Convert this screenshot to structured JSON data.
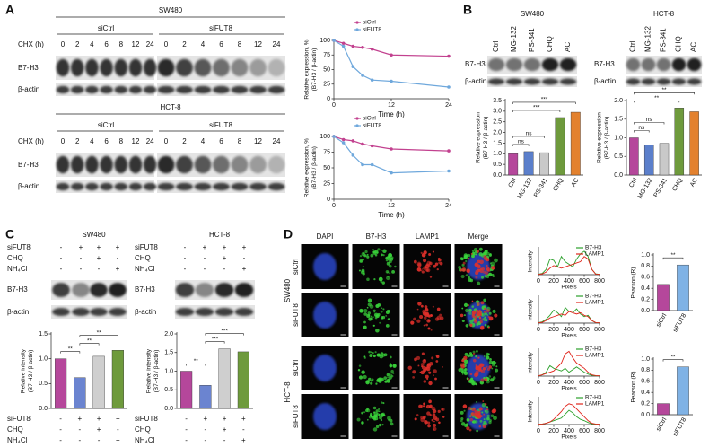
{
  "panel_labels": [
    "A",
    "B",
    "C",
    "D"
  ],
  "panel_a": {
    "groups": [
      {
        "title": "SW480",
        "conditions": [
          "siCtrl",
          "siFUT8"
        ],
        "time_label": "CHX (h)",
        "times": [
          "0",
          "2",
          "4",
          "6",
          "8",
          "12",
          "24"
        ],
        "rows": [
          "B7-H3",
          "β-actin"
        ]
      },
      {
        "title": "HCT-8",
        "conditions": [
          "siCtrl",
          "siFUT8"
        ],
        "time_label": "CHX (h)",
        "times": [
          "0",
          "2",
          "4",
          "6",
          "8",
          "12",
          "24"
        ],
        "rows": [
          "B7-H3",
          "β-actin"
        ]
      }
    ]
  },
  "panel_b": {
    "blots": [
      {
        "title": "SW480",
        "lanes": [
          "Ctrl",
          "MG-132",
          "PS-341",
          "CHQ",
          "AC"
        ],
        "rows": [
          "B7-H3",
          "β-actin"
        ]
      },
      {
        "title": "HCT-8",
        "lanes": [
          "Ctrl",
          "MG-132",
          "PS-341",
          "CHQ",
          "AC"
        ],
        "rows": [
          "B7-H3",
          "β-actin"
        ]
      }
    ]
  },
  "panel_c": {
    "blots": [
      {
        "title": "SW480",
        "treatments": [
          {
            "name": "siFUT8",
            "signs": [
              "-",
              "+",
              "+",
              "+"
            ]
          },
          {
            "name": "CHQ",
            "signs": [
              "-",
              "-",
              "+",
              "-"
            ]
          },
          {
            "name": "NH₄Cl",
            "signs": [
              "-",
              "-",
              "-",
              "+"
            ]
          }
        ],
        "rows": [
          "B7-H3",
          "β-actin"
        ]
      },
      {
        "title": "HCT-8",
        "treatments": [
          {
            "name": "siFUT8",
            "signs": [
              "-",
              "+",
              "+",
              "+"
            ]
          },
          {
            "name": "CHQ",
            "signs": [
              "-",
              "-",
              "+",
              "-"
            ]
          },
          {
            "name": "NH₄Cl",
            "signs": [
              "-",
              "-",
              "-",
              "+"
            ]
          }
        ],
        "rows": [
          "B7-H3",
          "β-actin"
        ]
      }
    ]
  },
  "panel_d": {
    "columns": [
      "DAPI",
      "B7-H3",
      "LAMP1",
      "Merge"
    ],
    "groups": [
      {
        "name": "SW480",
        "rows": [
          "siCtrl",
          "siFUT8"
        ]
      },
      {
        "name": "HCT-8",
        "rows": [
          "siCtrl",
          "siFUT8"
        ]
      }
    ]
  },
  "chart_data": [
    {
      "type": "line",
      "ylabel": [
        "Relative expression, %",
        "(B7-H3 / β-actin)"
      ],
      "xlabel": "Time (h)",
      "x": [
        0,
        2,
        4,
        6,
        8,
        12,
        24
      ],
      "xlim": [
        0,
        24
      ],
      "xticks": [
        0,
        12,
        24
      ],
      "ylim": [
        0,
        100
      ],
      "yticks": [
        0,
        25,
        50,
        75,
        100
      ],
      "legend": "top-left",
      "markers": true,
      "series": [
        {
          "name": "siCtrl",
          "color": "#c2418f",
          "values": [
            100,
            95,
            90,
            88,
            85,
            75,
            73
          ]
        },
        {
          "name": "siFUT8",
          "color": "#6fa8dc",
          "values": [
            100,
            90,
            55,
            40,
            32,
            30,
            20
          ]
        }
      ]
    },
    {
      "type": "line",
      "ylabel": [
        "Relative expression, %",
        "(B7-H3 / β-actin)"
      ],
      "xlabel": "Time (h)",
      "x": [
        0,
        2,
        4,
        6,
        8,
        12,
        24
      ],
      "xlim": [
        0,
        24
      ],
      "xticks": [
        0,
        12,
        24
      ],
      "ylim": [
        0,
        100
      ],
      "yticks": [
        0,
        25,
        50,
        75,
        100
      ],
      "legend": "top-left",
      "markers": true,
      "series": [
        {
          "name": "siCtrl",
          "color": "#c2418f",
          "values": [
            100,
            95,
            93,
            88,
            85,
            80,
            77
          ]
        },
        {
          "name": "siFUT8",
          "color": "#6fa8dc",
          "values": [
            100,
            90,
            70,
            55,
            55,
            42,
            45
          ]
        }
      ]
    },
    {
      "type": "bar",
      "ylabel": [
        "Relative expression",
        "(B7-H3 / β-actin)"
      ],
      "categories": [
        "Ctrl",
        "MG-132",
        "PS-341",
        "CHQ",
        "AC"
      ],
      "colors": [
        "#b5479b",
        "#5b7fcb",
        "#c9c9c9",
        "#6e9a3c",
        "#e3812e"
      ],
      "values": [
        1.0,
        1.1,
        1.05,
        2.7,
        2.95
      ],
      "ylim": [
        0,
        3.5
      ],
      "yticks": [
        {
          "value": 0,
          "label": "0.0"
        },
        {
          "value": 0.5,
          "label": "0.5"
        },
        {
          "value": 1,
          "label": "1.0"
        },
        {
          "value": 1.5,
          "label": "1.5"
        },
        {
          "value": 2,
          "label": "2.0"
        },
        {
          "value": 2.5,
          "label": "2.5"
        },
        {
          "value": 3,
          "label": "3.0"
        },
        {
          "value": 3.5,
          "label": "3.5"
        }
      ],
      "comparisons": [
        {
          "pair": [
            0,
            1
          ],
          "label": "ns"
        },
        {
          "pair": [
            0,
            2
          ],
          "label": "ns"
        },
        {
          "pair": [
            0,
            3
          ],
          "label": "***"
        },
        {
          "pair": [
            0,
            4
          ],
          "label": "***"
        }
      ]
    },
    {
      "type": "bar",
      "ylabel": [
        "Relative expression",
        "(B7-H3 / β-actin)"
      ],
      "categories": [
        "Ctrl",
        "MG-132",
        "PS-341",
        "CHQ",
        "AC"
      ],
      "colors": [
        "#b5479b",
        "#5b7fcb",
        "#c9c9c9",
        "#6e9a3c",
        "#e3812e"
      ],
      "values": [
        1.0,
        0.8,
        0.85,
        1.8,
        1.7
      ],
      "ylim": [
        0,
        2
      ],
      "yticks": [
        {
          "value": 0,
          "label": "0.0"
        },
        {
          "value": 0.5,
          "label": "0.5"
        },
        {
          "value": 1,
          "label": "1.0"
        },
        {
          "value": 1.5,
          "label": "1.5"
        },
        {
          "value": 2,
          "label": "2.0"
        }
      ],
      "comparisons": [
        {
          "pair": [
            0,
            1
          ],
          "label": "ns"
        },
        {
          "pair": [
            0,
            2
          ],
          "label": "ns"
        },
        {
          "pair": [
            0,
            3
          ],
          "label": "**"
        },
        {
          "pair": [
            0,
            4
          ],
          "label": "**"
        }
      ]
    },
    {
      "type": "bar",
      "ylabel": [
        "Relative intensity",
        "(B7-H3 / β-actin)"
      ],
      "categories": [
        null,
        null,
        null,
        null
      ],
      "colors": [
        "#b5479b",
        "#6b84d0",
        "#cfcfcf",
        "#6e9a3c"
      ],
      "values": [
        1.0,
        0.62,
        1.05,
        1.17
      ],
      "ylim": [
        0,
        1.5
      ],
      "yticks": [
        {
          "value": 0,
          "label": "0.0"
        },
        {
          "value": 0.5,
          "label": "0.5"
        },
        {
          "value": 1,
          "label": "1.0"
        },
        {
          "value": 1.5,
          "label": "1.5"
        }
      ],
      "comparisons": [
        {
          "pair": [
            0,
            1
          ],
          "label": "**"
        },
        {
          "pair": [
            1,
            2
          ],
          "label": "**"
        },
        {
          "pair": [
            1,
            3
          ],
          "label": "**"
        }
      ]
    },
    {
      "type": "bar",
      "ylabel": [
        "Relative intensity",
        "(B7-H3 / β-actin)"
      ],
      "categories": [
        null,
        null,
        null,
        null
      ],
      "colors": [
        "#b5479b",
        "#6b84d0",
        "#cfcfcf",
        "#6e9a3c"
      ],
      "values": [
        1.0,
        0.62,
        1.6,
        1.52
      ],
      "ylim": [
        0,
        2
      ],
      "yticks": [
        {
          "value": 0,
          "label": "0.0"
        },
        {
          "value": 0.5,
          "label": "0.5"
        },
        {
          "value": 1,
          "label": "1.0"
        },
        {
          "value": 1.5,
          "label": "1.5"
        },
        {
          "value": 2,
          "label": "2.0"
        }
      ],
      "comparisons": [
        {
          "pair": [
            0,
            1
          ],
          "label": "**"
        },
        {
          "pair": [
            1,
            2
          ],
          "label": "***"
        },
        {
          "pair": [
            1,
            3
          ],
          "label": "***"
        }
      ]
    },
    {
      "type": "line",
      "ylabel": [
        "Intensity"
      ],
      "xlabel": "Pixels",
      "x": [
        0,
        50,
        100,
        150,
        200,
        250,
        300,
        350,
        400,
        450,
        500,
        550,
        600,
        650,
        700,
        750,
        800
      ],
      "xlim": [
        0,
        800
      ],
      "xticks": [
        0,
        200,
        400,
        600,
        800
      ],
      "ylim": [
        0,
        100
      ],
      "legend": "upper-right",
      "series": [
        {
          "name": "B7-H3",
          "color": "#2ca02c",
          "values": [
            2,
            5,
            20,
            60,
            55,
            30,
            70,
            50,
            40,
            30,
            60,
            80,
            90,
            70,
            20,
            3,
            1
          ]
        },
        {
          "name": "LAMP1",
          "color": "#e0241b",
          "values": [
            1,
            3,
            10,
            25,
            35,
            30,
            25,
            30,
            35,
            40,
            45,
            50,
            70,
            60,
            20,
            2,
            1
          ]
        }
      ]
    },
    {
      "type": "line",
      "ylabel": [
        "Intensity"
      ],
      "xlabel": "Pixels",
      "x": [
        0,
        50,
        100,
        150,
        200,
        250,
        300,
        350,
        400,
        450,
        500,
        550,
        600,
        650,
        700,
        750,
        800
      ],
      "xlim": [
        0,
        800
      ],
      "xticks": [
        0,
        200,
        400,
        600,
        800
      ],
      "ylim": [
        0,
        100
      ],
      "legend": "upper-right",
      "series": [
        {
          "name": "B7-H3",
          "color": "#2ca02c",
          "values": [
            2,
            5,
            15,
            30,
            50,
            40,
            25,
            60,
            45,
            40,
            55,
            35,
            25,
            30,
            10,
            2,
            1
          ]
        },
        {
          "name": "LAMP1",
          "color": "#e0241b",
          "values": [
            1,
            3,
            10,
            20,
            25,
            30,
            35,
            30,
            45,
            40,
            35,
            40,
            30,
            25,
            10,
            2,
            1
          ]
        }
      ]
    },
    {
      "type": "line",
      "ylabel": [
        "Intensity"
      ],
      "xlabel": "Pixels",
      "x": [
        0,
        50,
        100,
        150,
        200,
        250,
        300,
        350,
        400,
        450,
        500,
        550,
        600,
        650,
        700,
        750,
        800
      ],
      "xlim": [
        0,
        800
      ],
      "xticks": [
        0,
        200,
        400,
        600,
        800
      ],
      "ylim": [
        0,
        100
      ],
      "legend": "upper-right",
      "series": [
        {
          "name": "B7-H3",
          "color": "#2ca02c",
          "values": [
            1,
            5,
            15,
            40,
            30,
            25,
            20,
            30,
            15,
            25,
            35,
            25,
            15,
            8,
            3,
            1,
            1
          ]
        },
        {
          "name": "LAMP1",
          "color": "#e0241b",
          "values": [
            1,
            5,
            10,
            15,
            20,
            35,
            50,
            85,
            95,
            70,
            50,
            40,
            30,
            15,
            5,
            2,
            1
          ]
        }
      ]
    },
    {
      "type": "line",
      "ylabel": [
        "Intensity"
      ],
      "xlabel": "Pixels",
      "x": [
        0,
        50,
        100,
        150,
        200,
        250,
        300,
        350,
        400,
        450,
        500,
        550,
        600,
        650,
        700,
        750,
        800
      ],
      "xlim": [
        0,
        800
      ],
      "xticks": [
        0,
        200,
        400,
        600,
        800
      ],
      "ylim": [
        0,
        100
      ],
      "legend": "upper-right",
      "series": [
        {
          "name": "B7-H3",
          "color": "#2ca02c",
          "values": [
            1,
            2,
            5,
            10,
            15,
            20,
            25,
            40,
            55,
            45,
            30,
            20,
            15,
            8,
            3,
            1,
            1
          ]
        },
        {
          "name": "LAMP1",
          "color": "#e0241b",
          "values": [
            1,
            2,
            5,
            10,
            20,
            35,
            50,
            70,
            80,
            75,
            60,
            45,
            30,
            15,
            5,
            2,
            1
          ]
        }
      ]
    },
    {
      "type": "bar",
      "ylabel": [
        "Pearson (R)"
      ],
      "categories": [
        "siCtrl",
        "siFUT8"
      ],
      "colors": [
        "#b5479b",
        "#7fb2e5"
      ],
      "values": [
        0.47,
        0.82
      ],
      "ylim": [
        0,
        1
      ],
      "yticks": [
        {
          "value": 0,
          "label": "0.0"
        },
        {
          "value": 0.2,
          "label": "0.2"
        },
        {
          "value": 0.4,
          "label": "0.4"
        },
        {
          "value": 0.6,
          "label": "0.6"
        },
        {
          "value": 0.8,
          "label": "0.8"
        },
        {
          "value": 1,
          "label": "1.0"
        }
      ],
      "comparisons": [
        {
          "pair": [
            0,
            1
          ],
          "label": "**"
        }
      ]
    },
    {
      "type": "bar",
      "ylabel": [
        "Pearson (R)"
      ],
      "categories": [
        "siCtrl",
        "siFUT8"
      ],
      "colors": [
        "#b5479b",
        "#7fb2e5"
      ],
      "values": [
        0.2,
        0.86
      ],
      "ylim": [
        0,
        1
      ],
      "yticks": [
        {
          "value": 0,
          "label": "0.0"
        },
        {
          "value": 0.2,
          "label": "0.2"
        },
        {
          "value": 0.4,
          "label": "0.4"
        },
        {
          "value": 0.6,
          "label": "0.6"
        },
        {
          "value": 0.8,
          "label": "0.8"
        },
        {
          "value": 1,
          "label": "1.0"
        }
      ],
      "comparisons": [
        {
          "pair": [
            0,
            1
          ],
          "label": "**"
        }
      ]
    }
  ]
}
